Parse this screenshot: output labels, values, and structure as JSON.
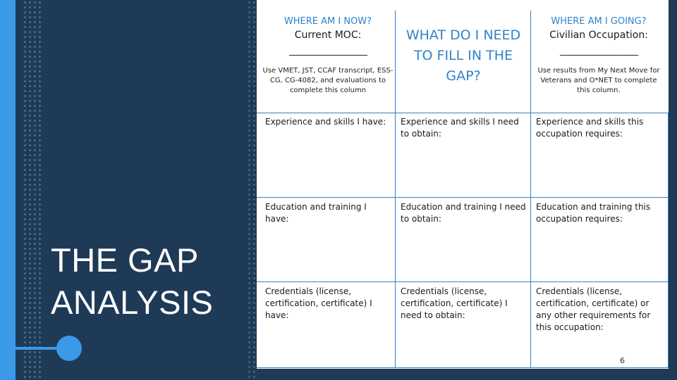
{
  "title": {
    "line1": "THE GAP",
    "line2": "ANALYSIS"
  },
  "left_column": {
    "heading": "WHERE AM I NOW?",
    "subheading": "Current MOC:",
    "blank": "____________________",
    "note": "Use VMET, JST, CCAF transcript, ESS-CG, CG-4082, and evaluations to complete this column"
  },
  "middle_column": {
    "heading": "WHAT DO I NEED TO FILL IN THE GAP?"
  },
  "right_column": {
    "heading": "WHERE AM I GOING?",
    "subheading": "Civilian Occupation:",
    "blank": "____________________",
    "note": "Use results from My Next Move for Veterans and O*NET to complete this column."
  },
  "rows": [
    {
      "have": "Experience and skills I have:",
      "need": "Experience and skills I need to obtain:",
      "requires": "Experience and skills this occupation requires:"
    },
    {
      "have": "Education and training I have:",
      "need": "Education and training I need to obtain:",
      "requires": "Education and training this occupation requires:"
    },
    {
      "have": "Credentials (license, certification, certificate) I have:",
      "need": "Credentials (license, certification, certificate) I need to obtain:",
      "requires": "Credentials (license, certification, certificate) or any other requirements for this occupation:"
    }
  ],
  "page_number": "6",
  "colors": {
    "background": "#1f3a57",
    "accent": "#3a9ae8",
    "heading_blue": "#2f83c9"
  }
}
